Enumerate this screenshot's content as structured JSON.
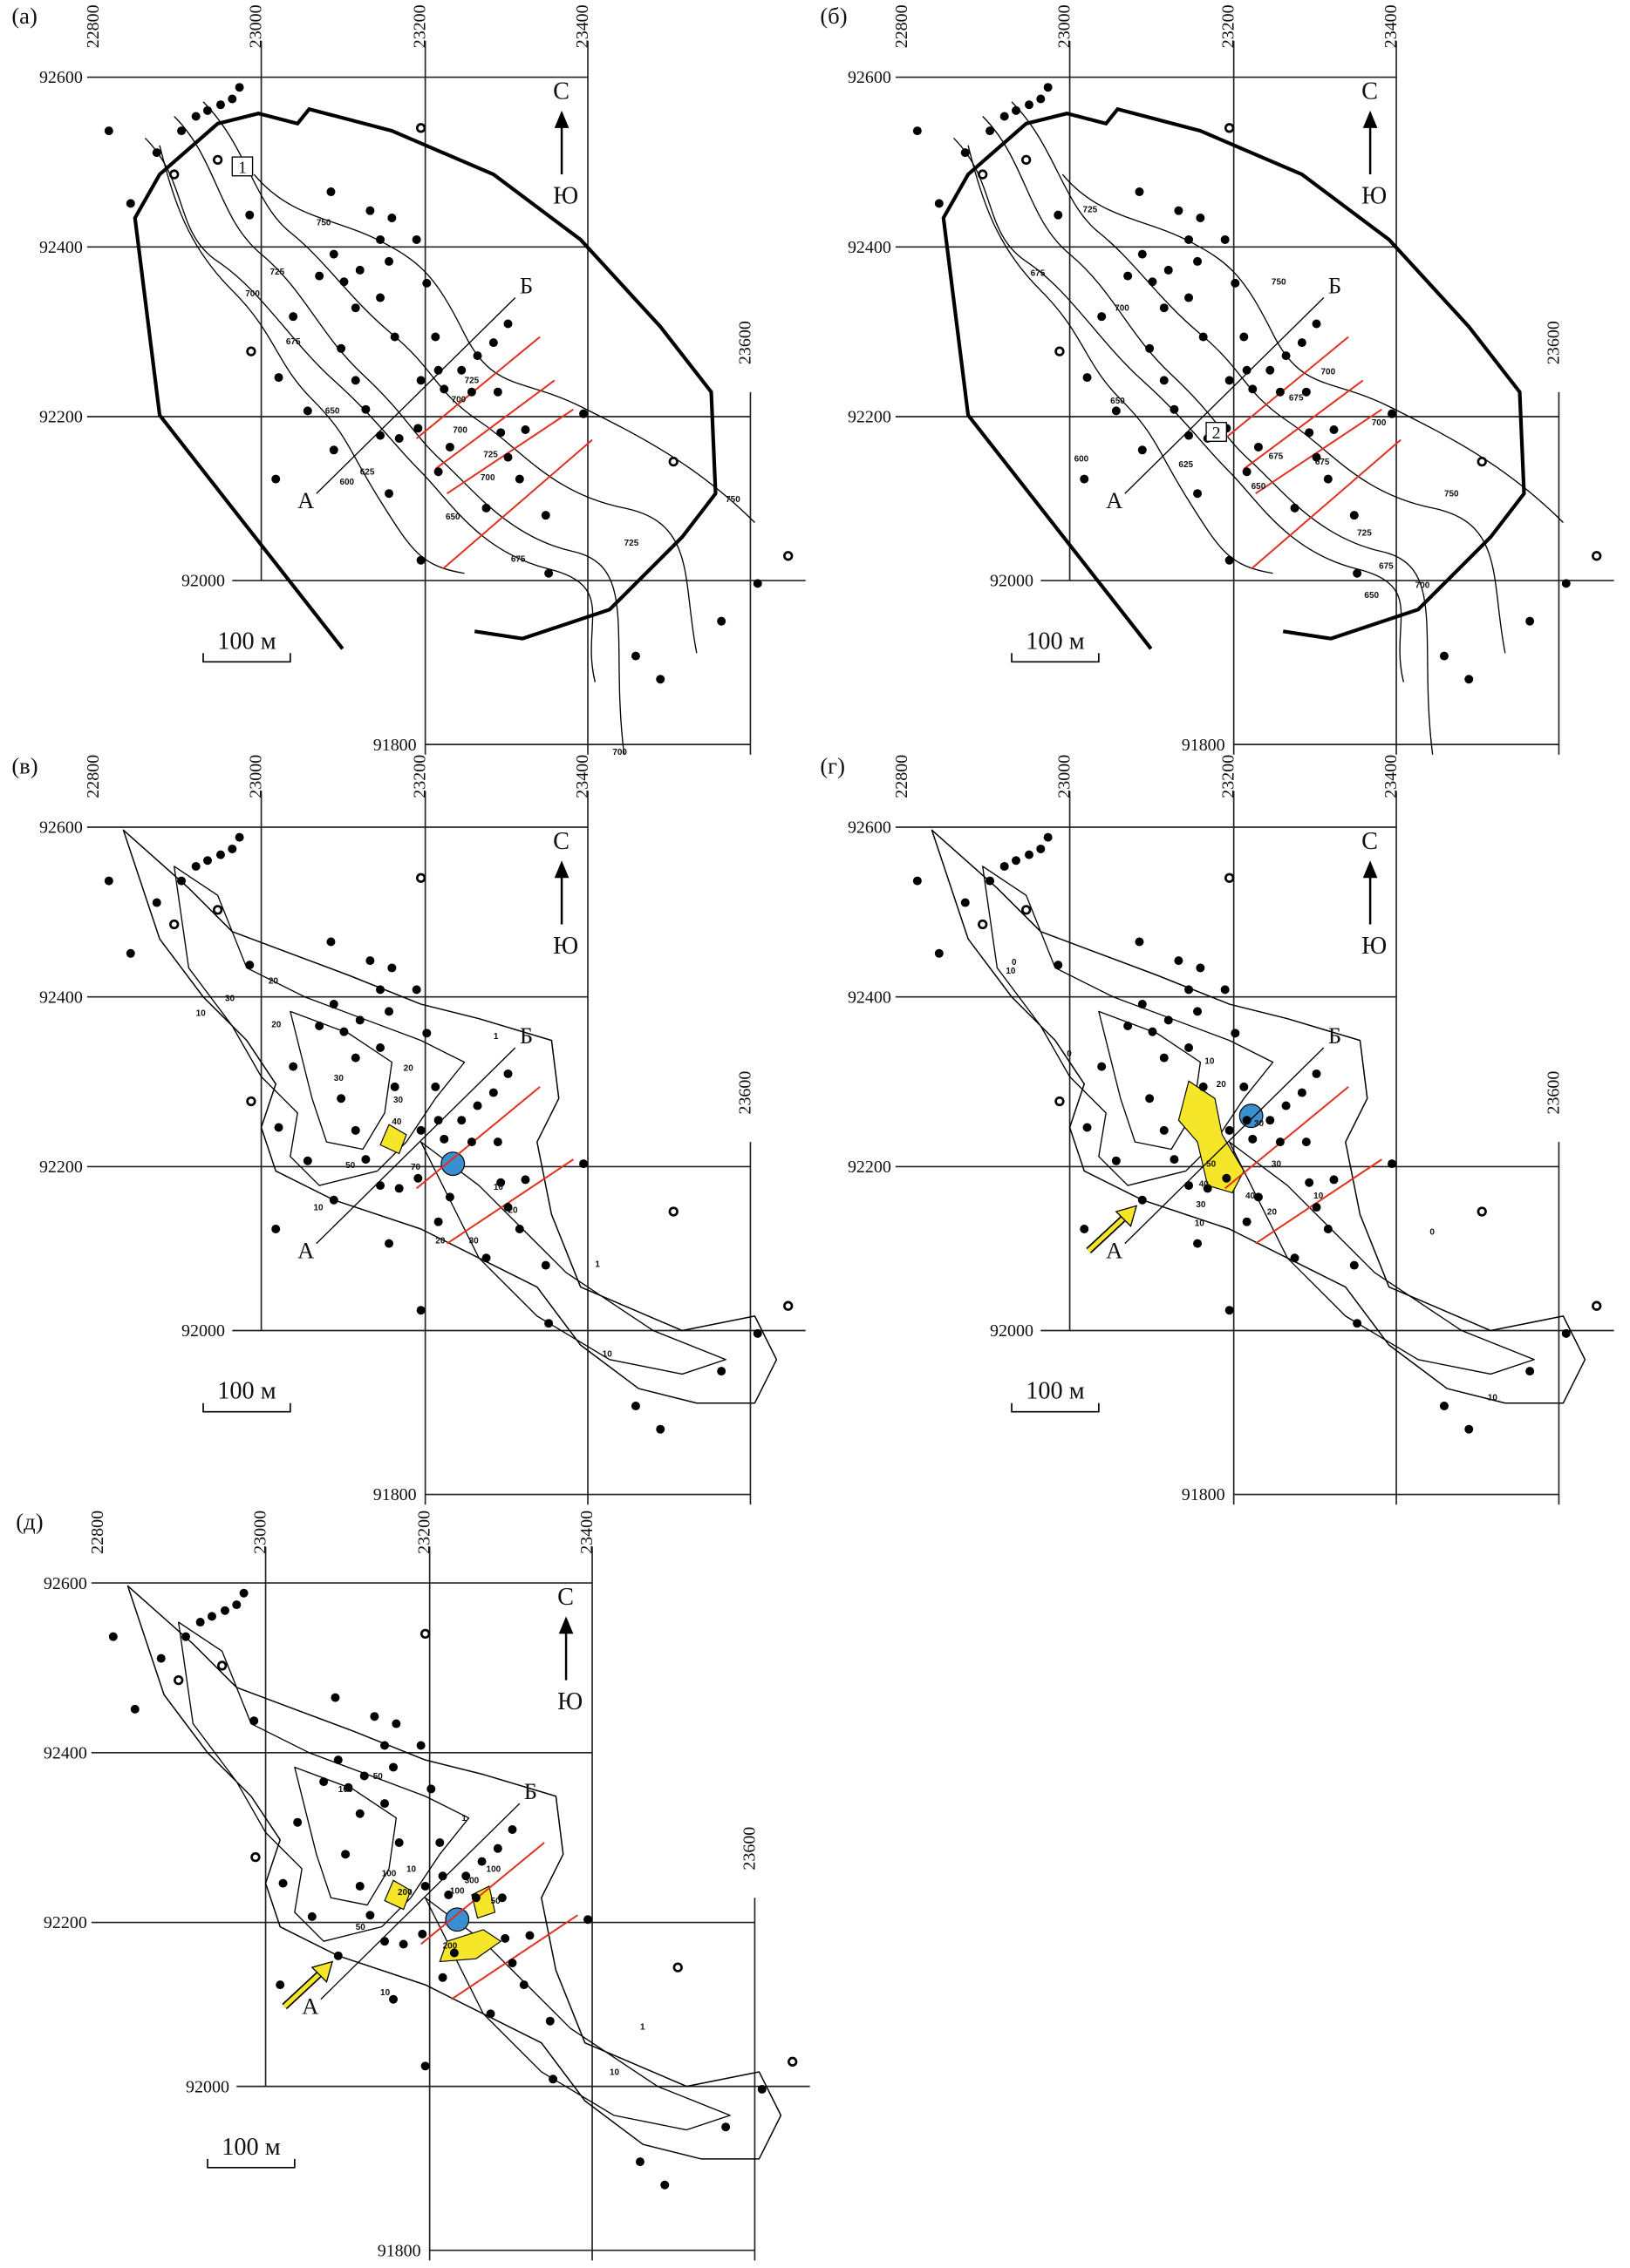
{
  "panels": [
    {
      "label": "(а)",
      "x_ticks": [
        22800,
        23000,
        23200,
        23400,
        23600
      ],
      "y_ticks": [
        92600,
        92400,
        92200,
        92000,
        91800
      ],
      "north": "С",
      "south": "Ю",
      "scale": "100 м",
      "point_a": "А",
      "point_b": "Б",
      "marker": "1",
      "contour_labels": [
        "750",
        "725",
        "700",
        "675",
        "650",
        "625",
        "600",
        "725",
        "700",
        "700",
        "725",
        "700",
        "650",
        "675",
        "725",
        "750",
        "700"
      ]
    },
    {
      "label": "(б)",
      "x_ticks": [
        22800,
        23000,
        23200,
        23400,
        23600
      ],
      "y_ticks": [
        92600,
        92400,
        92200,
        92000,
        91800
      ],
      "north": "С",
      "south": "Ю",
      "scale": "100 м",
      "point_a": "А",
      "point_b": "Б",
      "marker": "2",
      "contour_labels": [
        "725",
        "675",
        "700",
        "750",
        "650",
        "600",
        "625",
        "650",
        "675",
        "700",
        "700",
        "675",
        "675",
        "750",
        "725",
        "700",
        "675",
        "650"
      ]
    },
    {
      "label": "(в)",
      "x_ticks": [
        22800,
        23000,
        23200,
        23400,
        23600
      ],
      "y_ticks": [
        92600,
        92400,
        92200,
        92000,
        91800
      ],
      "north": "С",
      "south": "Ю",
      "scale": "100 м",
      "point_a": "А",
      "point_b": "Б",
      "contour_labels": [
        "20",
        "30",
        "10",
        "20",
        "30",
        "30",
        "40",
        "20",
        "1",
        "50",
        "10",
        "70",
        "10",
        "20",
        "20",
        "30",
        "1",
        "10"
      ]
    },
    {
      "label": "(г)",
      "x_ticks": [
        22800,
        23000,
        23200,
        23400,
        23600
      ],
      "y_ticks": [
        92600,
        92400,
        92200,
        92000,
        91800
      ],
      "north": "С",
      "south": "Ю",
      "scale": "100 м",
      "point_a": "А",
      "point_b": "Б",
      "contour_labels": [
        "0",
        "10",
        "0",
        "10",
        "20",
        "30",
        "50",
        "40",
        "30",
        "10",
        "40",
        "20",
        "30",
        "10",
        "0",
        "10"
      ]
    },
    {
      "label": "(д)",
      "x_ticks": [
        22800,
        23000,
        23200,
        23400,
        23600
      ],
      "y_ticks": [
        92600,
        92400,
        92200,
        92000,
        91800
      ],
      "north": "С",
      "south": "Ю",
      "scale": "100 м",
      "point_a": "А",
      "point_b": "Б",
      "contour_labels": [
        "100",
        "50",
        "100",
        "200",
        "100",
        "50",
        "10",
        "300",
        "100",
        "50",
        "200",
        "10",
        "1",
        "1",
        "10"
      ]
    }
  ]
}
